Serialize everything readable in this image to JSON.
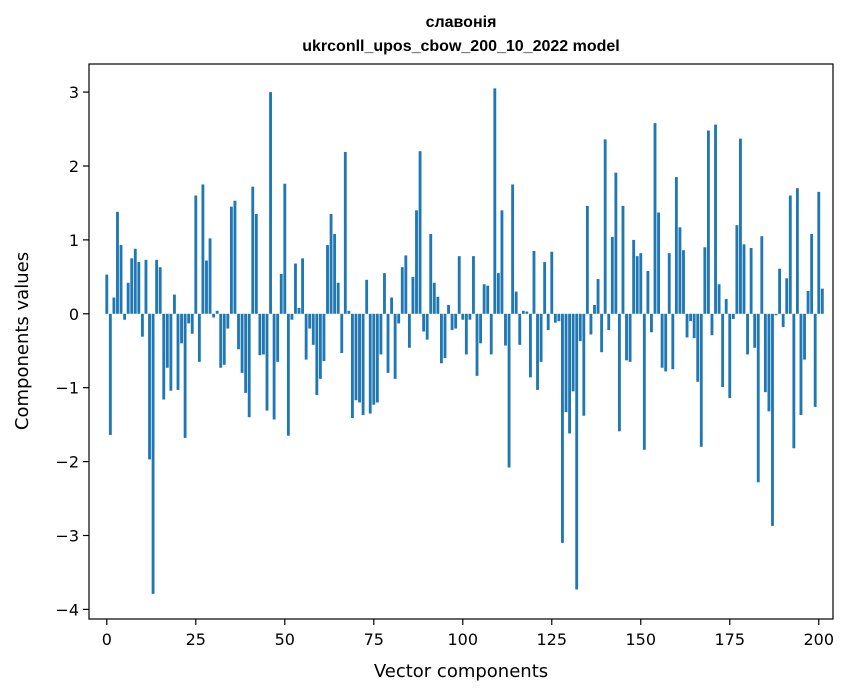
{
  "chart_data": {
    "type": "bar",
    "title": "славонія",
    "subtitle": "ukrconll_upos_cbow_200_10_2022 model",
    "xlabel": "Vector components",
    "ylabel": "Components values",
    "xlim": [
      -5,
      204
    ],
    "ylim": [
      -4.13,
      3.38
    ],
    "xticks": [
      0,
      25,
      50,
      75,
      100,
      125,
      150,
      175,
      200
    ],
    "yticks": [
      -4,
      -3,
      -2,
      -1,
      0,
      1,
      2,
      3
    ],
    "color": "#1f77b4",
    "grid": false,
    "legend": "none",
    "values": [
      0.53,
      -1.64,
      0.22,
      1.38,
      0.93,
      -0.08,
      0.42,
      0.75,
      0.88,
      0.7,
      -0.31,
      0.73,
      -1.97,
      -3.79,
      0.73,
      0.63,
      -1.16,
      -0.73,
      -1.04,
      0.26,
      -1.03,
      -0.4,
      -1.68,
      -0.13,
      -0.27,
      1.6,
      -0.65,
      1.75,
      0.72,
      1.02,
      -0.05,
      0.04,
      -0.73,
      -0.69,
      -0.2,
      1.45,
      1.53,
      -0.48,
      -0.8,
      -1.07,
      -1.4,
      1.72,
      1.35,
      -0.56,
      -0.55,
      -1.31,
      3.0,
      -1.43,
      -0.65,
      0.54,
      1.76,
      -1.65,
      -0.08,
      0.68,
      0.08,
      0.75,
      -0.62,
      -0.2,
      -0.42,
      -1.1,
      -0.88,
      -0.64,
      0.93,
      1.35,
      1.08,
      0.42,
      -0.53,
      2.19,
      0.04,
      -1.41,
      -1.17,
      -1.2,
      -1.37,
      0.46,
      -1.35,
      -1.23,
      -1.2,
      -0.55,
      0.55,
      -0.8,
      0.22,
      -0.88,
      -0.13,
      0.63,
      0.79,
      -0.46,
      0.5,
      1.4,
      2.2,
      -0.24,
      -0.35,
      1.08,
      0.42,
      0.23,
      -0.67,
      -0.6,
      0.12,
      -0.22,
      -0.2,
      0.78,
      -0.08,
      -0.55,
      -0.08,
      0.78,
      -0.84,
      -0.4,
      0.4,
      0.38,
      -0.55,
      3.05,
      0.55,
      1.4,
      -0.43,
      -2.08,
      1.75,
      0.3,
      -0.42,
      0.04,
      0.03,
      -0.86,
      0.85,
      -1.03,
      -0.65,
      0.7,
      -0.22,
      0.84,
      -0.12,
      -0.1,
      -3.1,
      -1.33,
      -1.62,
      -1.05,
      -3.73,
      -0.37,
      -1.38,
      1.46,
      -0.28,
      0.12,
      0.47,
      -0.52,
      2.36,
      -0.22,
      1.04,
      1.91,
      -1.59,
      1.46,
      -0.63,
      -0.65,
      1.0,
      0.78,
      0.82,
      -1.84,
      0.58,
      -0.25,
      2.58,
      1.37,
      -0.73,
      -0.78,
      0.82,
      -0.75,
      1.85,
      1.17,
      0.86,
      -0.32,
      -0.1,
      -0.33,
      -0.92,
      -1.8,
      0.9,
      2.48,
      -0.29,
      2.56,
      0.4,
      -0.99,
      0.2,
      -1.14,
      -0.07,
      1.2,
      2.37,
      0.94,
      -0.55,
      0.89,
      -0.46,
      -2.28,
      1.05,
      -1.06,
      -1.32,
      -2.87,
      -0.02,
      0.61,
      -0.18,
      0.48,
      1.6,
      -1.82,
      1.7,
      -1.37,
      -0.62,
      0.31,
      1.08,
      -1.26,
      1.65,
      0.34
    ]
  }
}
